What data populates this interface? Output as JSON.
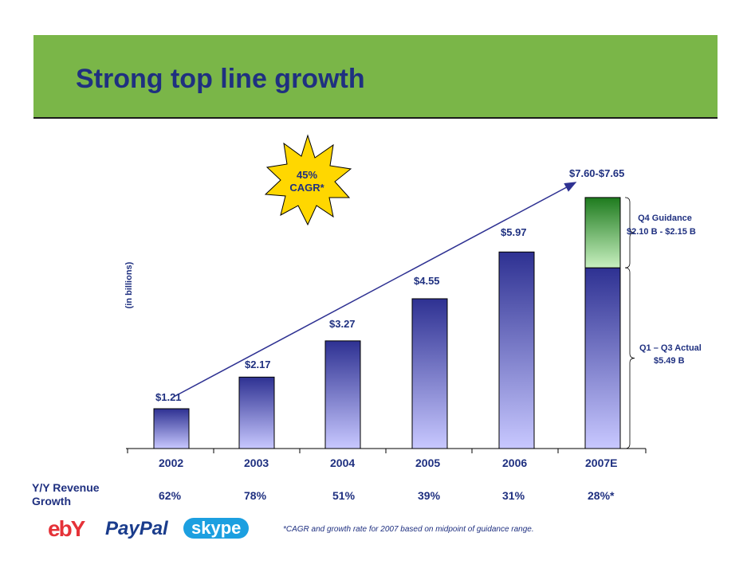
{
  "header": {
    "title": "Strong top line growth"
  },
  "badge": {
    "line1": "45%",
    "line2": "CAGR*"
  },
  "chart_data": {
    "type": "bar",
    "ylabel": "(in billions)",
    "categories": [
      "2002",
      "2003",
      "2004",
      "2005",
      "2006",
      "2007E"
    ],
    "values": [
      1.21,
      2.17,
      3.27,
      4.55,
      5.97,
      7.625
    ],
    "value_labels": [
      "$1.21",
      "$2.17",
      "$3.27",
      "$4.55",
      "$5.97",
      "$7.60-$7.65"
    ],
    "stacked_2007E": [
      {
        "name": "Q1 – Q3 Actual",
        "value": 5.49,
        "label": "$5.49 B"
      },
      {
        "name": "Q4 Guidance",
        "value": 2.135,
        "label": "$2.10 B - $2.15 B"
      }
    ],
    "ylim": [
      0,
      8.3
    ],
    "trend_arrow": {
      "from": "2002",
      "to": "2007E"
    },
    "colors": {
      "bar_top": "#2e3192",
      "bar_bottom": "#c8c8ff",
      "guidance_top": "#1e7b1e",
      "guidance_bottom": "#c8f0c0",
      "header": "#7ab648"
    }
  },
  "notes": {
    "q4_title": "Q4 Guidance",
    "q4_value": "$2.10 B - $2.15 B",
    "q13_title": "Q1 – Q3 Actual",
    "q13_value": "$5.49 B"
  },
  "growth": {
    "label": "Y/Y Revenue Growth",
    "values": [
      "62%",
      "78%",
      "51%",
      "39%",
      "31%",
      "28%*"
    ]
  },
  "footnote": "*CAGR and growth rate for 2007 based on midpoint of guidance range.",
  "logos": [
    {
      "name": "ebay-logo",
      "text": "ebY"
    },
    {
      "name": "paypal-logo",
      "text": "PayPal"
    },
    {
      "name": "skype-logo",
      "text": "skype"
    }
  ]
}
